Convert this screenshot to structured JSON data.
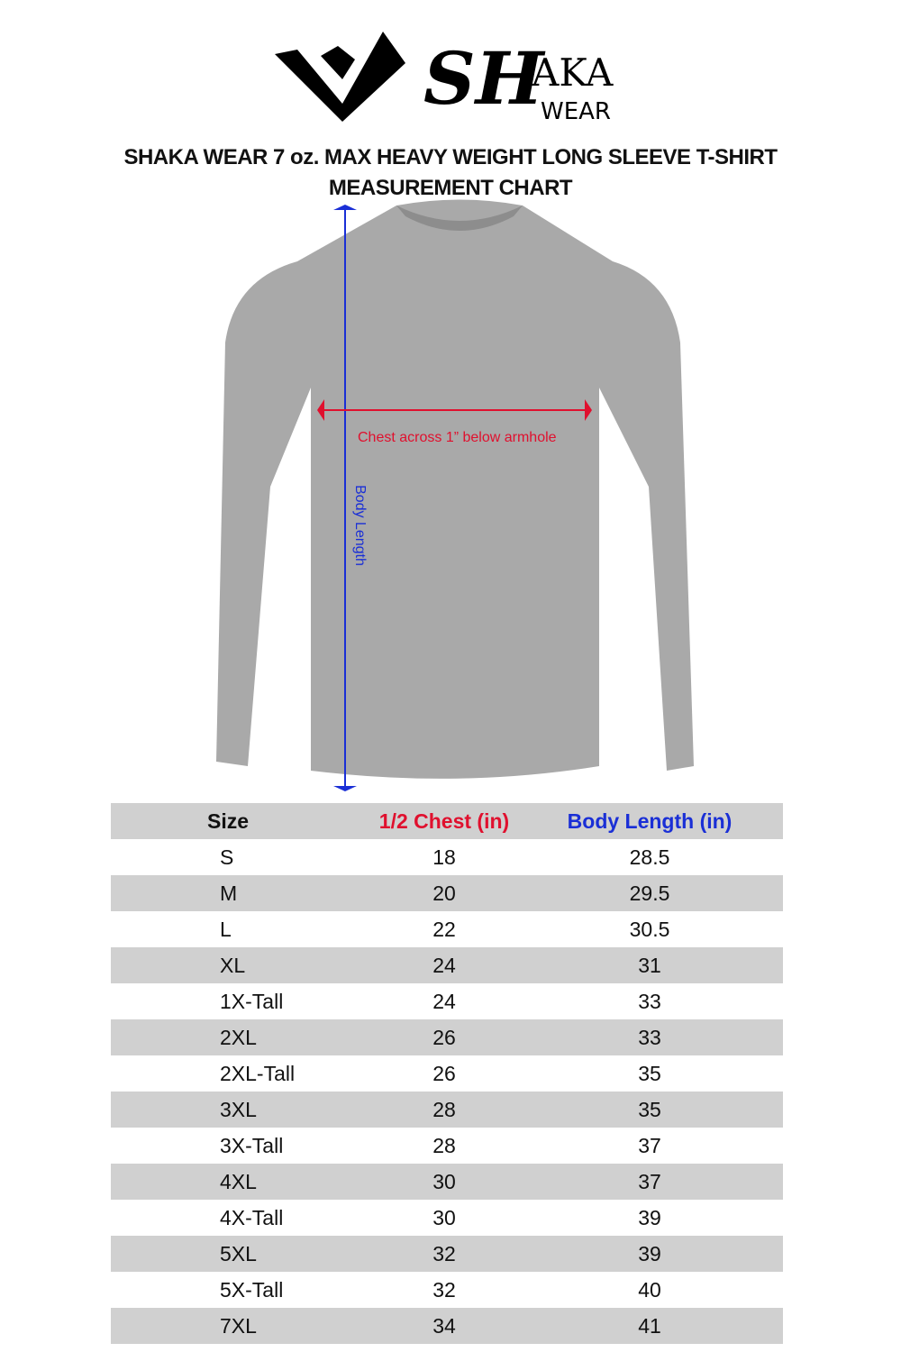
{
  "logo": {
    "text": "SHAKA WEAR"
  },
  "title": {
    "line1": "SHAKA WEAR 7 oz. MAX HEAVY WEIGHT LONG SLEEVE T-SHIRT",
    "line2": "MEASUREMENT CHART"
  },
  "diagram": {
    "chest_label": "Chest across 1” below armhole",
    "body_label": "Body Length",
    "chest_color": "#e0102e",
    "body_color": "#1a2fd6",
    "shirt_color": "#a9a9a9"
  },
  "table": {
    "headers": [
      "Size",
      "1/2 Chest (in)",
      "Body Length (in)"
    ],
    "rows": [
      [
        "S",
        "18",
        "28.5"
      ],
      [
        "M",
        "20",
        "29.5"
      ],
      [
        "L",
        "22",
        "30.5"
      ],
      [
        "XL",
        "24",
        "31"
      ],
      [
        "1X-Tall",
        "24",
        "33"
      ],
      [
        "2XL",
        "26",
        "33"
      ],
      [
        "2XL-Tall",
        "26",
        "35"
      ],
      [
        "3XL",
        "28",
        "35"
      ],
      [
        "3X-Tall",
        "28",
        "37"
      ],
      [
        "4XL",
        "30",
        "37"
      ],
      [
        "4X-Tall",
        "30",
        "39"
      ],
      [
        "5XL",
        "32",
        "39"
      ],
      [
        "5X-Tall",
        "32",
        "40"
      ],
      [
        "7XL",
        "34",
        "41"
      ]
    ]
  }
}
